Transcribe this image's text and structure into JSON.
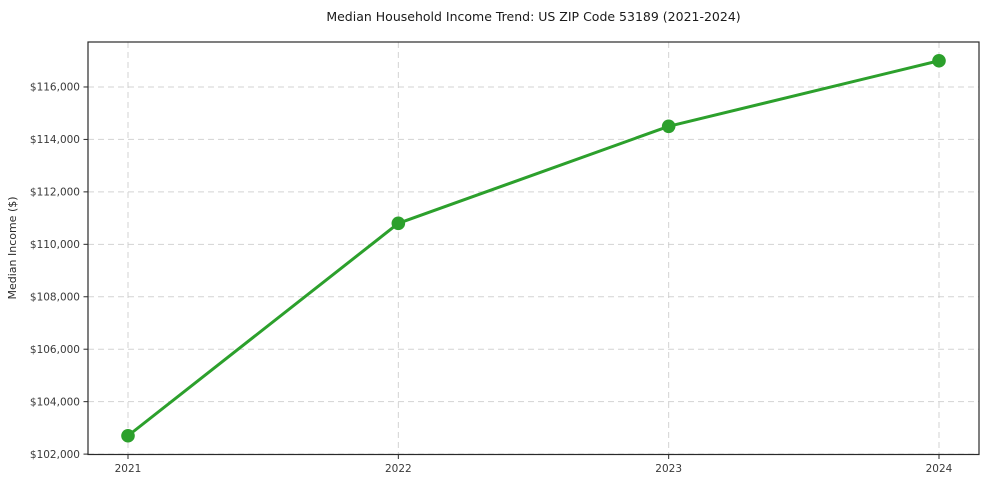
{
  "chart_data": {
    "type": "line",
    "title": "Median Household Income Trend: US ZIP Code 53189 (2021-2024)",
    "xlabel": "",
    "ylabel": "Median Income ($)",
    "categories": [
      "2021",
      "2022",
      "2023",
      "2024"
    ],
    "values": [
      102700,
      110800,
      114500,
      117000
    ],
    "ylim": [
      101985,
      117715
    ],
    "ytick_values": [
      102000,
      104000,
      106000,
      108000,
      110000,
      112000,
      114000,
      116000
    ],
    "ytick_labels": [
      "$102,000",
      "$104,000",
      "$106,000",
      "$108,000",
      "$110,000",
      "$112,000",
      "$114,000",
      "$116,000"
    ],
    "grid": true,
    "grid_style": "dashed",
    "legend_position": "none",
    "line_color": "#2ca02c",
    "marker": "circle",
    "grid_color": "#cccccc",
    "spine_color": "#2a2a2a",
    "tick_color": "#3a3a3a",
    "background_color": "#ffffff"
  }
}
